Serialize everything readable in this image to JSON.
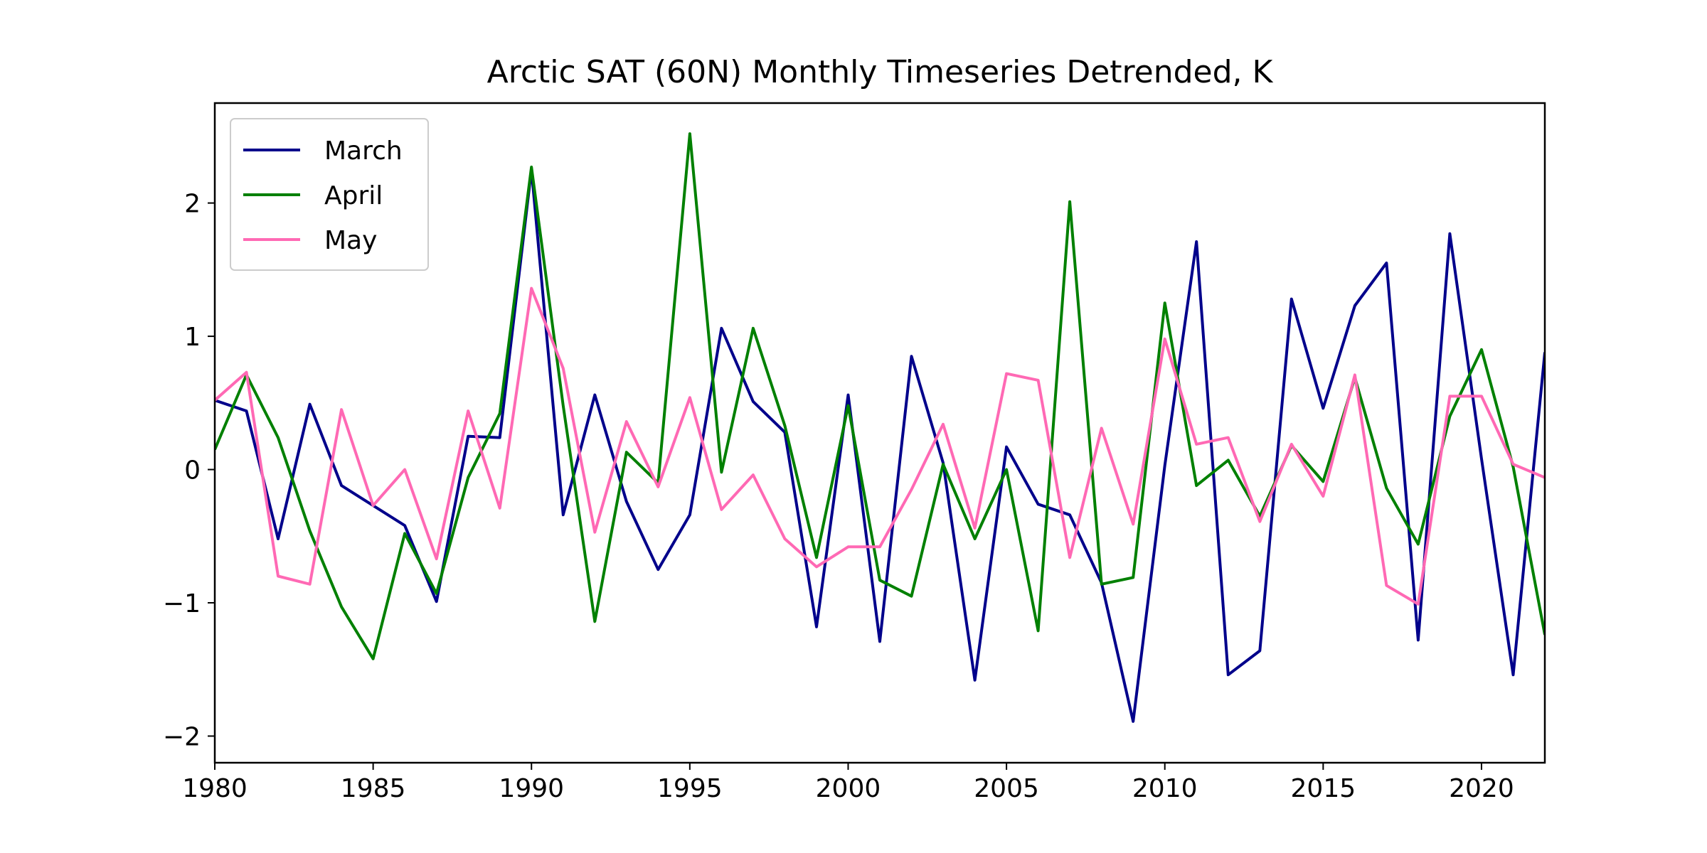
{
  "chart_data": {
    "type": "line",
    "title": "Arctic SAT (60N) Monthly Timeseries Detrended, K",
    "xlabel": "",
    "ylabel": "",
    "xlim": [
      1980,
      2022
    ],
    "ylim": [
      -2.2,
      2.75
    ],
    "x_ticks": [
      1980,
      1985,
      1990,
      1995,
      2000,
      2005,
      2010,
      2015,
      2020
    ],
    "y_ticks": [
      -2,
      -1,
      0,
      1,
      2
    ],
    "y_tick_labels": [
      "−2",
      "−1",
      "0",
      "1",
      "2"
    ],
    "grid": false,
    "legend_position": "top-left",
    "x": [
      1980,
      1981,
      1982,
      1983,
      1984,
      1985,
      1986,
      1987,
      1988,
      1989,
      1990,
      1991,
      1992,
      1993,
      1994,
      1995,
      1996,
      1997,
      1998,
      1999,
      2000,
      2001,
      2002,
      2003,
      2004,
      2005,
      2006,
      2007,
      2008,
      2009,
      2010,
      2011,
      2012,
      2013,
      2014,
      2015,
      2016,
      2017,
      2018,
      2019,
      2020,
      2021,
      2022
    ],
    "series": [
      {
        "name": "March",
        "color": "#00008b",
        "values": [
          0.52,
          0.44,
          -0.52,
          0.49,
          -0.12,
          -0.27,
          -0.42,
          -0.99,
          0.25,
          0.24,
          2.25,
          -0.34,
          0.56,
          -0.24,
          -0.75,
          -0.34,
          1.06,
          0.51,
          0.28,
          -1.18,
          0.56,
          -1.29,
          0.85,
          0.05,
          -1.58,
          0.17,
          -0.26,
          -0.34,
          -0.85,
          -1.89,
          0.03,
          1.71,
          -1.54,
          -1.36,
          1.28,
          0.46,
          1.23,
          1.55,
          -1.28,
          1.77,
          0.08,
          -1.54,
          0.88
        ]
      },
      {
        "name": "April",
        "color": "#008000",
        "values": [
          0.15,
          0.71,
          0.24,
          -0.46,
          -1.03,
          -1.42,
          -0.48,
          -0.93,
          -0.06,
          0.42,
          2.27,
          0.48,
          -1.14,
          0.13,
          -0.1,
          2.52,
          -0.02,
          1.06,
          0.33,
          -0.66,
          0.48,
          -0.83,
          -0.95,
          0.04,
          -0.52,
          0.0,
          -1.21,
          2.01,
          -0.86,
          -0.81,
          1.25,
          -0.12,
          0.07,
          -0.35,
          0.18,
          -0.09,
          0.69,
          -0.14,
          -0.56,
          0.4,
          0.9,
          0.02,
          -1.24
        ]
      },
      {
        "name": "May",
        "color": "#ff69b4",
        "values": [
          0.52,
          0.73,
          -0.8,
          -0.86,
          0.45,
          -0.27,
          0.0,
          -0.67,
          0.44,
          -0.29,
          1.36,
          0.76,
          -0.47,
          0.36,
          -0.13,
          0.54,
          -0.3,
          -0.04,
          -0.52,
          -0.73,
          -0.58,
          -0.58,
          -0.15,
          0.34,
          -0.44,
          0.72,
          0.67,
          -0.66,
          0.31,
          -0.41,
          0.98,
          0.19,
          0.24,
          -0.39,
          0.19,
          -0.2,
          0.71,
          -0.87,
          -1.01,
          0.55,
          0.55,
          0.04,
          -0.06
        ]
      }
    ]
  }
}
